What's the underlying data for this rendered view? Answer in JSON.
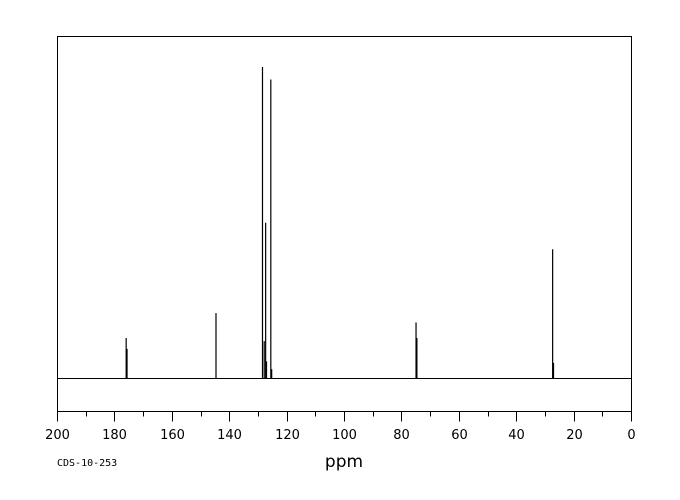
{
  "chart_data": {
    "type": "line",
    "xlabel": "ppm",
    "xlim": [
      200,
      0
    ],
    "x_reversed": true,
    "ylim": [
      0,
      100
    ],
    "grid": false,
    "x_ticks_major": [
      200,
      180,
      160,
      140,
      120,
      100,
      80,
      60,
      40,
      20,
      0
    ],
    "x_tick_labels": [
      "200",
      "180",
      "160",
      "140",
      "120",
      "100",
      "80",
      "60",
      "40",
      "20",
      "0"
    ],
    "x_ticks_minor_step": 10,
    "peaks": [
      {
        "ppm": 175.9,
        "height": 13.0
      },
      {
        "ppm": 175.6,
        "height": 9.5
      },
      {
        "ppm": 144.6,
        "height": 21.0
      },
      {
        "ppm": 128.4,
        "height": 100.0
      },
      {
        "ppm": 127.8,
        "height": 12.0
      },
      {
        "ppm": 127.3,
        "height": 50.0
      },
      {
        "ppm": 127.0,
        "height": 5.5
      },
      {
        "ppm": 125.5,
        "height": 96.0
      },
      {
        "ppm": 125.2,
        "height": 3.0
      },
      {
        "ppm": 74.9,
        "height": 18.0
      },
      {
        "ppm": 74.6,
        "height": 13.0
      },
      {
        "ppm": 27.3,
        "height": 41.5
      },
      {
        "ppm": 27.0,
        "height": 5.0
      }
    ]
  },
  "sample_id": "CDS-10-253",
  "colors": {
    "line": "#000000",
    "background": "#ffffff"
  }
}
